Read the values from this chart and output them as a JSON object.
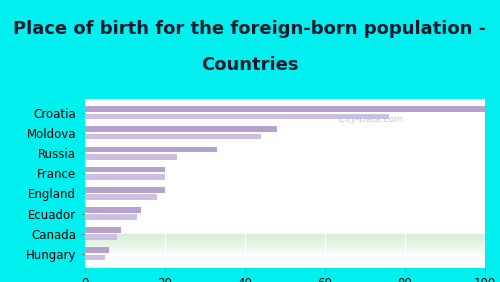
{
  "title_line1": "Place of birth for the foreign-born population -",
  "title_line2": "Countries",
  "categories": [
    "Croatia",
    "Moldova",
    "Russia",
    "France",
    "England",
    "Ecuador",
    "Canada",
    "Hungary"
  ],
  "bar_values_1": [
    100,
    48,
    33,
    20,
    20,
    14,
    9,
    6
  ],
  "bar_values_2": [
    76,
    44,
    23,
    20,
    18,
    13,
    8,
    5
  ],
  "bar_color_1": "#b8a0cc",
  "bar_color_2": "#cdbfe0",
  "background_outer": "#00f0f0",
  "xlim": [
    0,
    100
  ],
  "title_fontsize": 13,
  "label_fontsize": 8.5,
  "tick_fontsize": 8.5,
  "title_color": "#1a1a2e",
  "watermark": "  City-Data.com"
}
